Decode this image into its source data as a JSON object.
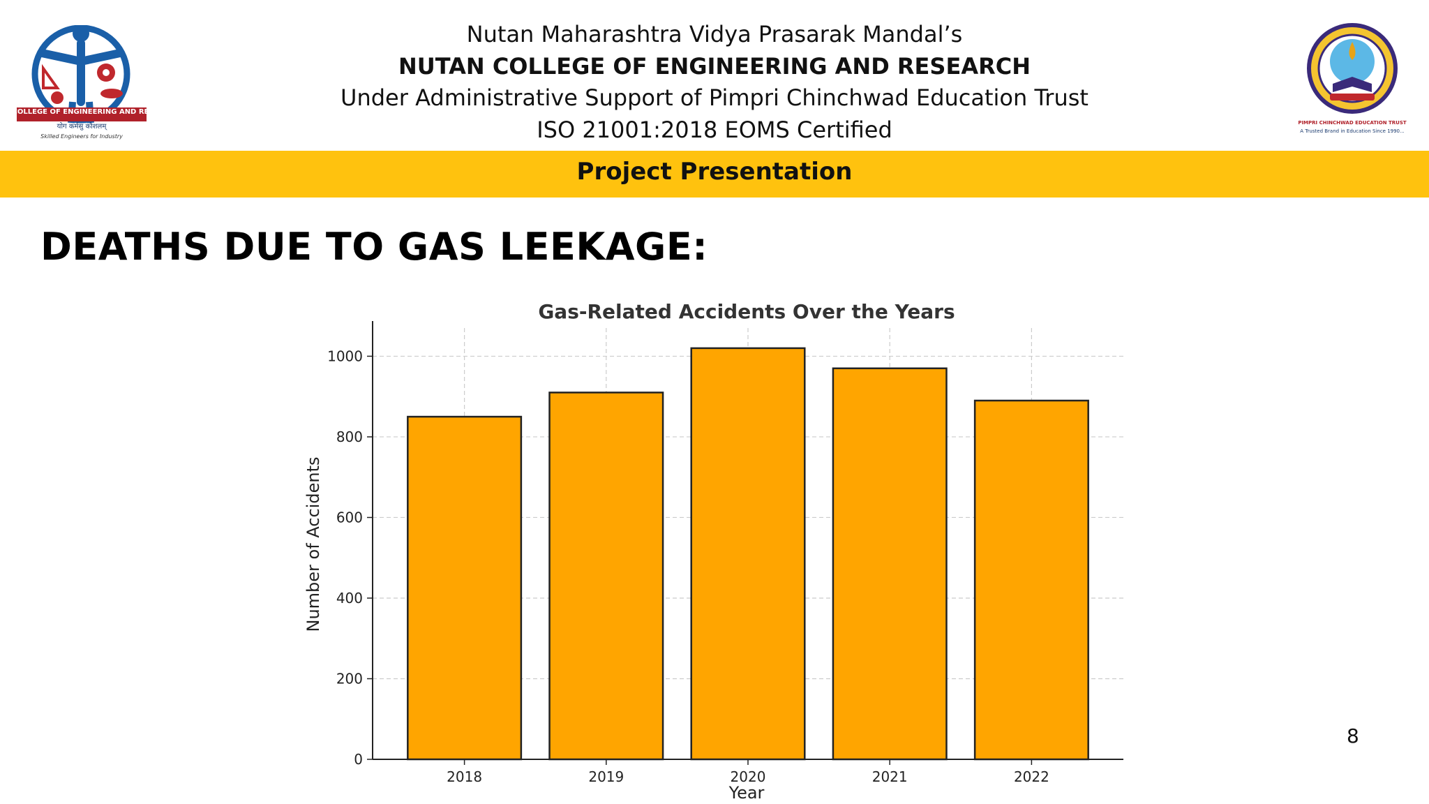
{
  "header": {
    "line1": "Nutan Maharashtra Vidya Prasarak Mandal’s",
    "line2": "NUTAN COLLEGE OF ENGINEERING AND RESEARCH",
    "line3": "Under Administrative Support of Pimpri Chinchwad Education Trust",
    "line4": "ISO 21001:2018 EOMS Certified"
  },
  "logos": {
    "left": {
      "name": "NUTAN COLLEGE OF ENGINEERING AND RESEARCH",
      "motto": "योग कर्मसु कौशलम्",
      "tagline": "Skilled Engineers for Industry"
    },
    "right": {
      "name": "PIMPRI CHINCHWAD EDUCATION TRUST",
      "tagline": "A Trusted Brand in Education Since 1990..."
    }
  },
  "band": {
    "text": "Project Presentation",
    "color": "#FFC20E"
  },
  "slide": {
    "title": "DEATHS DUE TO GAS LEEKAGE:",
    "page_number": "8"
  },
  "colors": {
    "bar_fill": "#FFA500",
    "bar_edge": "#222222",
    "grid": "#cccccc"
  },
  "chart_data": {
    "type": "bar",
    "title": "Gas-Related Accidents Over the Years",
    "xlabel": "Year",
    "ylabel": "Number of Accidents",
    "categories": [
      "2018",
      "2019",
      "2020",
      "2021",
      "2022"
    ],
    "values": [
      850,
      910,
      1020,
      970,
      890
    ],
    "ylim": [
      0,
      1070
    ],
    "yticks": [
      0,
      200,
      400,
      600,
      800,
      1000
    ],
    "grid": true,
    "legend": "none"
  }
}
